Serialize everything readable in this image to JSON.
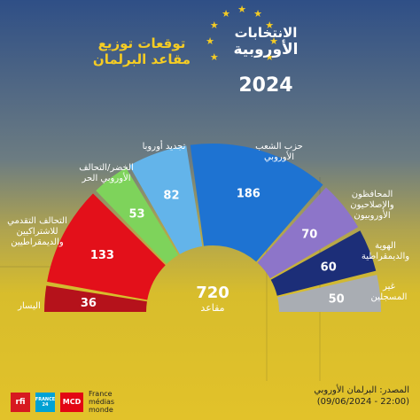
{
  "header": {
    "forecast_title_line1": "توقعات توزيع",
    "forecast_title_line2": "مقاعد البرلمان",
    "elections_line1": "الانتخابات",
    "elections_line2": "الأوروبية",
    "year": "2024"
  },
  "chart_data": {
    "type": "pie",
    "style": "half-donut parliament",
    "total": 720,
    "total_label": "مقاعد",
    "series": [
      {
        "name": "اليسار",
        "value": 36,
        "color": "#b5121b"
      },
      {
        "name": "التحالف التقدمي للاشتراكيين والديمقراطيين",
        "value": 133,
        "color": "#e3101a"
      },
      {
        "name": "الخضر/التحالف الأوروبي الحر",
        "value": 53,
        "color": "#7ed35b"
      },
      {
        "name": "تجديد أوروبا",
        "value": 82,
        "color": "#63b4ea"
      },
      {
        "name": "حزب الشعب الأوروبي",
        "value": 186,
        "color": "#1e73d2"
      },
      {
        "name": "المحافظون والإصلاحيون الأوروبيون",
        "value": 70,
        "color": "#8d75c9"
      },
      {
        "name": "الهوية والديمقراطية",
        "value": 60,
        "color": "#1c2e78"
      },
      {
        "name": "غير المسجلين",
        "value": 50,
        "color": "#a9adb3"
      }
    ]
  },
  "labels": {
    "left": "اليسار",
    "sd_1": "التحالف التقدمي",
    "sd_2": "للاشتراكيين",
    "sd_3": "والديمقراطيين",
    "greens_1": "الخضر/التحالف",
    "greens_2": "الأوروبي الحر",
    "renew": "تجديد أوروبا",
    "epp_1": "حزب الشعب",
    "epp_2": "الأوروبي",
    "ecr_1": "المحافظون",
    "ecr_2": "والإصلاحيون",
    "ecr_3": "الأوروبيون",
    "id_1": "الهوية",
    "id_2": "والديمقراطية",
    "ni_1": "غير",
    "ni_2": "المسجلين"
  },
  "logos": {
    "rfi": "rfi",
    "f24": "FRANCE 24",
    "mcd": "MCD",
    "fmm_1": "France",
    "fmm_2": "médias",
    "fmm_3": "monde"
  },
  "source": {
    "line1": "المصدر: البرلمان الأوروبي",
    "line2": "(09/06/2024 - 22:00)"
  }
}
